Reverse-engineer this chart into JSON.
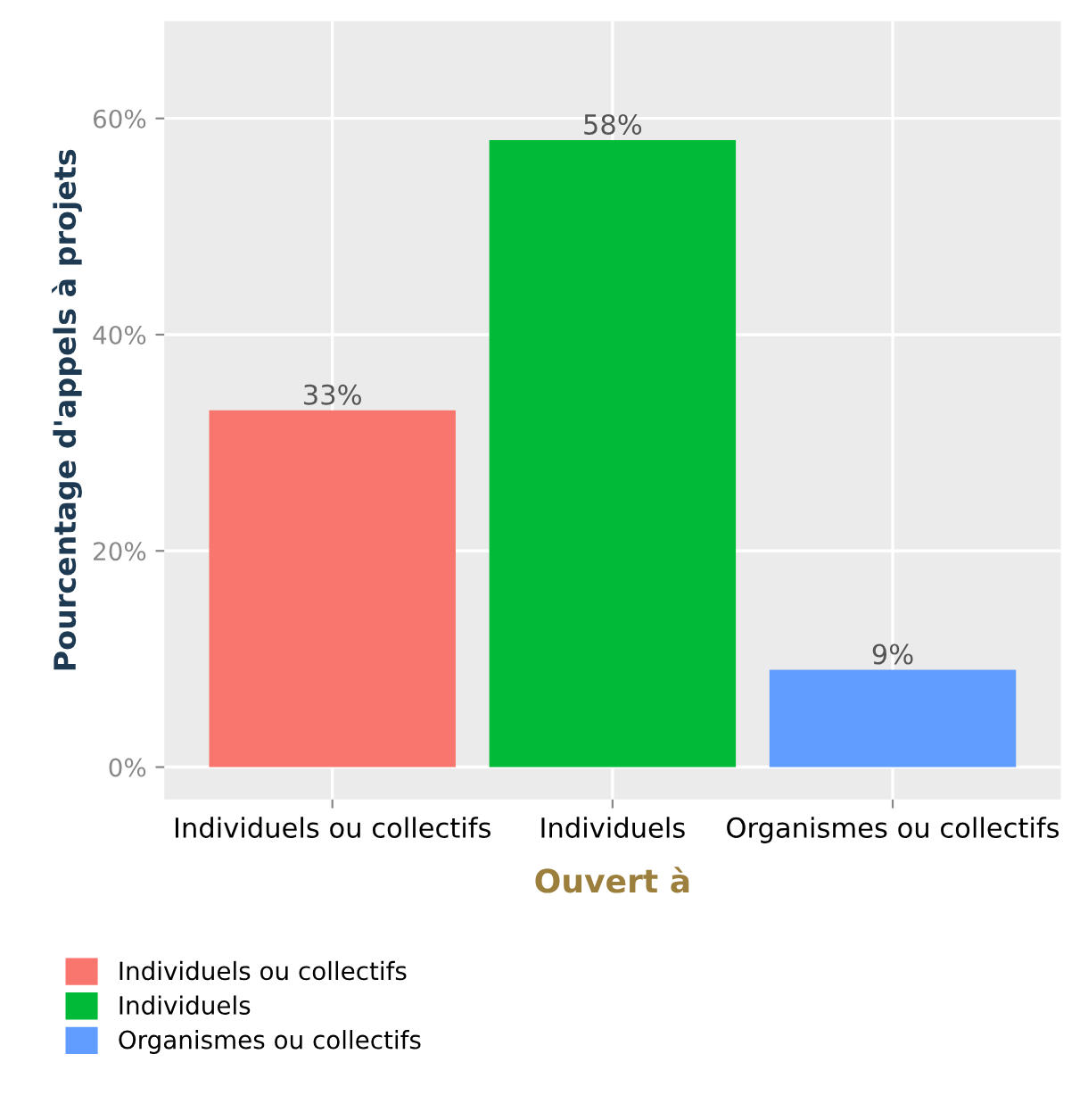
{
  "chart_data": {
    "type": "bar",
    "xlabel": "Ouvert à",
    "ylabel": "Pourcentage d'appels à projets",
    "categories": [
      "Individuels ou collectifs",
      "Individuels",
      "Organismes ou collectifs"
    ],
    "series": [
      {
        "name": "Individuels ou collectifs",
        "color": "#f8766d",
        "values": [
          33,
          null,
          null
        ],
        "value_labels": [
          "33%",
          null,
          null
        ]
      },
      {
        "name": "Individuels",
        "color": "#00ba38",
        "values": [
          null,
          58,
          null
        ],
        "value_labels": [
          null,
          "58%",
          null
        ]
      },
      {
        "name": "Organismes ou collectifs",
        "color": "#619cff",
        "values": [
          null,
          null,
          9
        ],
        "value_labels": [
          null,
          null,
          "9%"
        ]
      }
    ],
    "ylim": [
      -3,
      69
    ],
    "yticks": [
      {
        "value": 0,
        "label": "0%"
      },
      {
        "value": 20,
        "label": "20%"
      },
      {
        "value": 40,
        "label": "40%"
      },
      {
        "value": 60,
        "label": "60%"
      }
    ],
    "grid": true,
    "legend": "bottom left"
  }
}
